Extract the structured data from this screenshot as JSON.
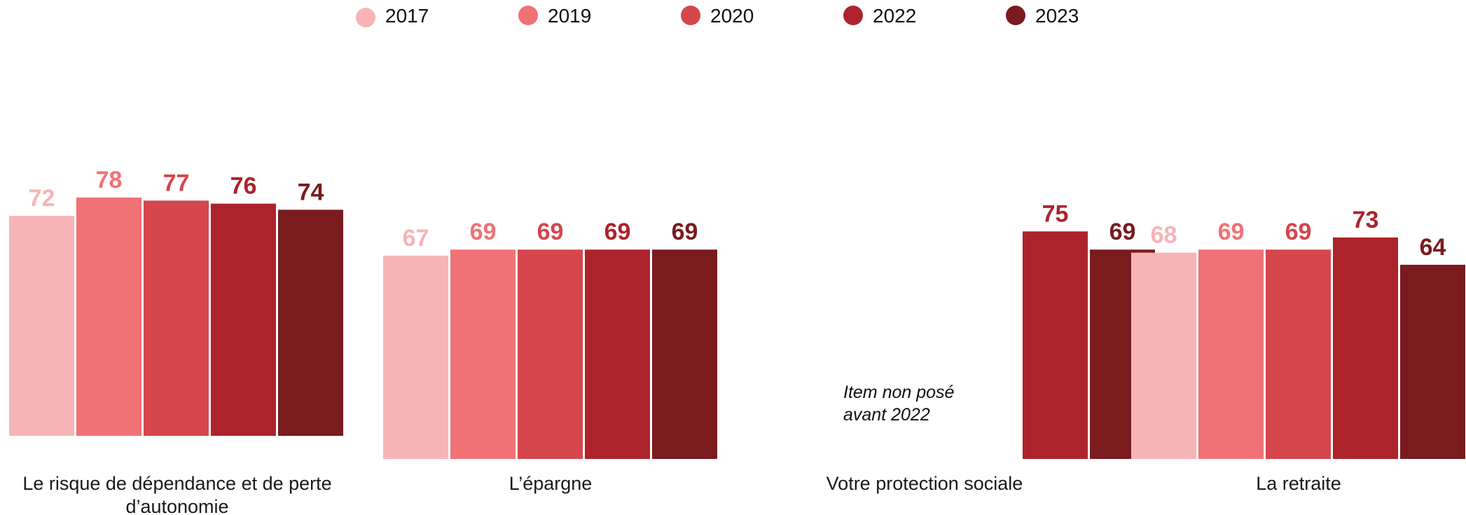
{
  "chart_data": {
    "type": "bar",
    "legend_position": "top",
    "series": [
      {
        "name": "2017",
        "color": "#F7B4B7"
      },
      {
        "name": "2019",
        "color": "#F07276"
      },
      {
        "name": "2020",
        "color": "#D5464D"
      },
      {
        "name": "2022",
        "color": "#AD232C"
      },
      {
        "name": "2023",
        "color": "#7A1B1E"
      }
    ],
    "groups": [
      {
        "category": "Le risque de dépendance et de perte d’autonomie",
        "category_lines": [
          "Le risque de dépendance et de perte",
          "d’autonomie"
        ],
        "values": [
          72,
          78,
          77,
          76,
          74
        ]
      },
      {
        "category": "L’épargne",
        "category_lines": [
          "L’épargne"
        ],
        "values": [
          67,
          69,
          69,
          69,
          69
        ]
      },
      {
        "category": "Votre protection sociale",
        "category_lines": [
          "Votre protection sociale"
        ],
        "values": [
          null,
          null,
          null,
          75,
          69
        ],
        "note_lines": [
          "Item non posé",
          "avant 2022"
        ]
      },
      {
        "category": "La retraite",
        "category_lines": [
          "La retraite"
        ],
        "values": [
          68,
          69,
          69,
          73,
          64
        ]
      }
    ]
  }
}
